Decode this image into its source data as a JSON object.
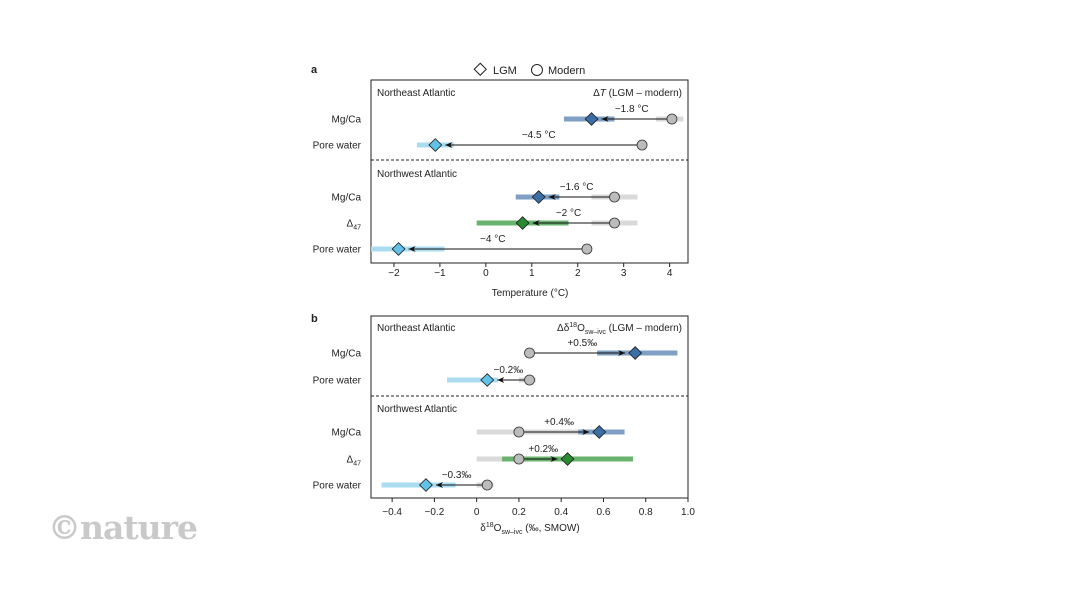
{
  "legend": {
    "lgm_label": "LGM",
    "modern_label": "Modern"
  },
  "colors": {
    "mgca_band": "#7f9fc5",
    "mgca_marker": "#3a6ea5",
    "pore_band": "#a9dcf0",
    "pore_marker": "#5fc2e6",
    "d47_band": "#69b36e",
    "d47_marker": "#2a8a32",
    "modern_band": "#d9d9d9",
    "modern_marker": "#bcbcbc"
  },
  "watermark": "©nature",
  "chart_data": [
    {
      "type": "range-dot",
      "panel": "a",
      "header_right": "ΔT (LGM – modern)",
      "xlabel": "Temperature (°C)",
      "xlim": [
        -2.5,
        4.4
      ],
      "xticks": [
        "-2",
        "-1",
        "0",
        "1",
        "2",
        "3",
        "4"
      ],
      "xtick_values": [
        -2,
        -1,
        0,
        1,
        2,
        3,
        4
      ],
      "groups": [
        {
          "region": "Northeast Atlantic",
          "rows": [
            {
              "label": "Mg/Ca",
              "proxy": "mgca",
              "lgm": 2.3,
              "modern": 4.05,
              "lgm_range": [
                1.7,
                2.8
              ],
              "modern_range": [
                3.7,
                4.3
              ],
              "delta": "−1.8 °C"
            },
            {
              "label": "Pore water",
              "proxy": "pore",
              "lgm": -1.1,
              "modern": 3.4,
              "lgm_range": [
                -1.5,
                -0.7
              ],
              "modern_range": null,
              "delta": "−4.5 °C"
            }
          ]
        },
        {
          "region": "Northwest Atlantic",
          "rows": [
            {
              "label": "Mg/Ca",
              "proxy": "mgca",
              "lgm": 1.15,
              "modern": 2.8,
              "lgm_range": [
                0.65,
                1.6
              ],
              "modern_range": [
                2.3,
                3.3
              ],
              "delta": "−1.6 °C"
            },
            {
              "label": "Δ47",
              "label_main": "Δ",
              "label_sub": "47",
              "proxy": "d47",
              "lgm": 0.8,
              "modern": 2.8,
              "lgm_range": [
                -0.2,
                1.8
              ],
              "modern_range": [
                2.3,
                3.3
              ],
              "delta": "−2 °C"
            },
            {
              "label": "Pore water",
              "proxy": "pore",
              "lgm": -1.9,
              "modern": 2.2,
              "lgm_range": [
                -2.5,
                -0.9
              ],
              "modern_range": null,
              "delta": "−4 °C"
            }
          ]
        }
      ]
    },
    {
      "type": "range-dot",
      "panel": "b",
      "header_right": "Δδ18Osw–ivc (LGM – modern)",
      "header_main": "Δδ",
      "header_sup": "18",
      "header_o": "O",
      "header_sub": "sw–ivc",
      "header_tail": " (LGM – modern)",
      "xlabel": "δ18Osw–ivc (‰, SMOW)",
      "xlabel_main": "δ",
      "xlabel_sup": "18",
      "xlabel_o": "O",
      "xlabel_sub": "sw–ivc",
      "xlabel_tail": " (‰, SMOW)",
      "xlim": [
        -0.5,
        1.0
      ],
      "xticks": [
        "-0.4",
        "-0.2",
        "0",
        "0.2",
        "0.4",
        "0.6",
        "0.8",
        "1.0"
      ],
      "xtick_values": [
        -0.4,
        -0.2,
        0,
        0.2,
        0.4,
        0.6,
        0.8,
        1.0
      ],
      "groups": [
        {
          "region": "Northeast Atlantic",
          "rows": [
            {
              "label": "Mg/Ca",
              "proxy": "mgca",
              "lgm": 0.75,
              "modern": 0.25,
              "lgm_range": [
                0.57,
                0.95
              ],
              "modern_range": null,
              "delta": "+0.5‰"
            },
            {
              "label": "Pore water",
              "proxy": "pore",
              "lgm": 0.05,
              "modern": 0.25,
              "lgm_range": [
                -0.14,
                0.1
              ],
              "modern_range": [
                0.2,
                0.28
              ],
              "delta": "−0.2‰"
            }
          ]
        },
        {
          "region": "Northwest Atlantic",
          "rows": [
            {
              "label": "Mg/Ca",
              "proxy": "mgca",
              "lgm": 0.58,
              "modern": 0.2,
              "lgm_range": [
                0.48,
                0.7
              ],
              "modern_range": [
                0.0,
                0.5
              ],
              "delta": "+0.4‰"
            },
            {
              "label": "Δ47",
              "label_main": "Δ",
              "label_sub": "47",
              "proxy": "d47",
              "lgm": 0.43,
              "modern": 0.2,
              "lgm_range": [
                0.12,
                0.74
              ],
              "modern_range": [
                0.0,
                0.4
              ],
              "delta": "+0.2‰"
            },
            {
              "label": "Pore water",
              "proxy": "pore",
              "lgm": -0.24,
              "modern": 0.05,
              "lgm_range": [
                -0.45,
                -0.1
              ],
              "modern_range": [
                0.0,
                0.08
              ],
              "delta": "−0.3‰"
            }
          ]
        }
      ]
    }
  ]
}
